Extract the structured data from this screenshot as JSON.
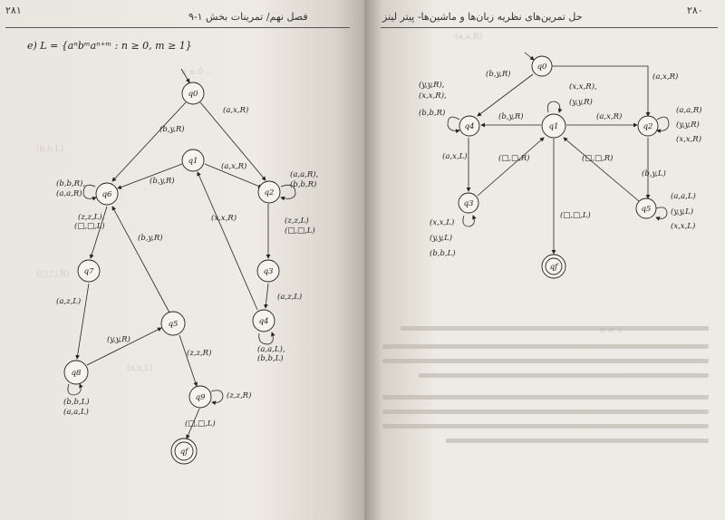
{
  "left_page": {
    "page_number": "۲۸۱",
    "header": "فصل نهم/ تمرینات بخش ۱-۹",
    "exercise_formula": "e) L = {aⁿbᵐaⁿ⁺ᵐ : n ≥ 0, m ≥ 1}",
    "states": [
      "q0",
      "q1",
      "q2",
      "q3",
      "q4",
      "q5",
      "q6",
      "q7",
      "q8",
      "q9",
      "qf"
    ],
    "edge_labels": [
      "(a,x,R)",
      "(b,y,R)",
      "(a,x,R)",
      "(b,y,R)",
      "(a,a,R),",
      "(b,b,R)",
      "(b,b,R),",
      "(a,a,R)",
      "(x,x,R)",
      "(b,y,R)",
      "(z,z,L),",
      "(□,□,L)",
      "(z,z,L)",
      "(□,□,L)",
      "(a,z,L)",
      "(a,z,L)",
      "(a,a,L),",
      "(b,b,L)",
      "(y,y,R)",
      "(z,z,R)",
      "(z,z,R)",
      "(b,b,L)",
      "(a,a,L)",
      "(□,□,L)"
    ]
  },
  "right_page": {
    "page_number": "۲۸۰",
    "header": "حل تمرین‌های نظریه زبان‌ها و ماشین‌ها- پیتر لینز",
    "states": [
      "q0",
      "q1",
      "q2",
      "q3",
      "q4",
      "q5",
      "qf"
    ],
    "edge_labels": [
      "(b,y,R)",
      "(a,x,R)",
      "(y,y,R),",
      "(x,x,R),",
      "(b,b,R)",
      "(x,x,R),",
      "(y,y,R)",
      "(b,y,R)",
      "(a,x,R)",
      "(a,a,R)",
      "(y,y,R)",
      "(x,x,R)",
      "(a,x,L)",
      "(□,□,R)",
      "(□,□,R)",
      "(b,y,L)",
      "(a,a,L)",
      "(y,y,L)",
      "(x,x,L)",
      "(□,□,L)",
      "(x,x,L)",
      "(y,y,L)",
      "(b,b,L)"
    ]
  }
}
